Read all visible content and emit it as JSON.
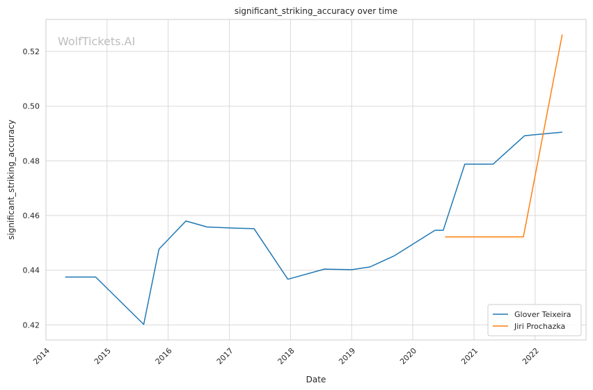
{
  "chart_data": {
    "type": "line",
    "title": "significant_striking_accuracy over time",
    "xlabel": "Date",
    "ylabel": "significant_striking_accuracy",
    "watermark": "WolfTickets.AI",
    "x_ticks": [
      "2014",
      "2015",
      "2016",
      "2017",
      "2018",
      "2019",
      "2020",
      "2021",
      "2022"
    ],
    "y_ticks": [
      "0.42",
      "0.44",
      "0.46",
      "0.48",
      "0.50",
      "0.52"
    ],
    "xlim": [
      "2014-01-01",
      "2022-11-01"
    ],
    "ylim": [
      0.4145,
      0.5317
    ],
    "grid": true,
    "legend_position": "lower-right",
    "series": [
      {
        "name": "Glover Teixeira",
        "color": "#1f77b4",
        "points": [
          {
            "x": "2014-04-26",
            "y": 0.4375
          },
          {
            "x": "2014-10-25",
            "y": 0.4375
          },
          {
            "x": "2015-08-08",
            "y": 0.4202
          },
          {
            "x": "2015-11-07",
            "y": 0.4477
          },
          {
            "x": "2016-04-16",
            "y": 0.458
          },
          {
            "x": "2016-08-20",
            "y": 0.4558
          },
          {
            "x": "2017-01-28",
            "y": 0.4554
          },
          {
            "x": "2017-05-28",
            "y": 0.4552
          },
          {
            "x": "2017-12-16",
            "y": 0.4367
          },
          {
            "x": "2018-07-22",
            "y": 0.4404
          },
          {
            "x": "2019-01-01",
            "y": 0.4402
          },
          {
            "x": "2019-04-20",
            "y": 0.4412
          },
          {
            "x": "2019-09-14",
            "y": 0.4453
          },
          {
            "x": "2020-05-13",
            "y": 0.4546
          },
          {
            "x": "2020-07-01",
            "y": 0.4546
          },
          {
            "x": "2020-11-07",
            "y": 0.4788
          },
          {
            "x": "2021-04-25",
            "y": 0.4788
          },
          {
            "x": "2021-10-30",
            "y": 0.4892
          },
          {
            "x": "2022-06-12",
            "y": 0.4905
          }
        ]
      },
      {
        "name": "Jiri Prochazka",
        "color": "#ff7f0e",
        "points": [
          {
            "x": "2020-07-12",
            "y": 0.4522
          },
          {
            "x": "2021-10-23",
            "y": 0.4522
          },
          {
            "x": "2022-06-12",
            "y": 0.5262
          }
        ]
      }
    ]
  }
}
